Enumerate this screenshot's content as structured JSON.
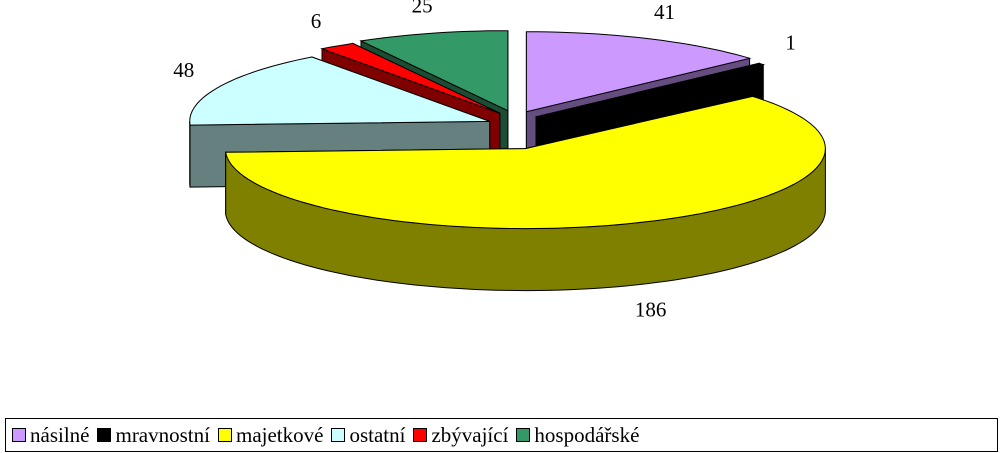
{
  "chart_data": {
    "type": "pie3d",
    "categories": [
      "násilné",
      "mravnostní",
      "majetkové",
      "ostatní",
      "zbývající",
      "hospodářské"
    ],
    "values": [
      41,
      1,
      186,
      48,
      6,
      25
    ],
    "colors": [
      "#cc99ff",
      "#000000",
      "#ffff00",
      "#ccffff",
      "#ff0000",
      "#339966"
    ],
    "legend": "bottom"
  }
}
